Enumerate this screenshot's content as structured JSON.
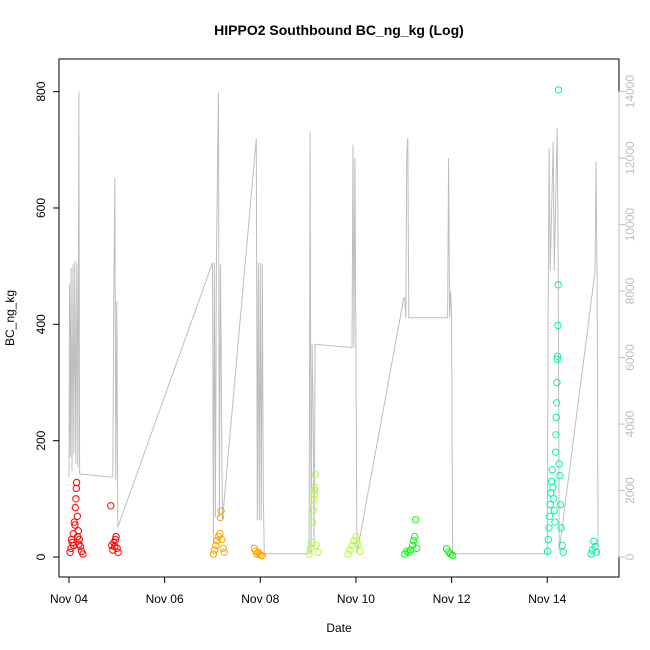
{
  "chart_data": {
    "type": "scatter",
    "title": "HIPPO2 Southbound BC_ng_kg (Log)",
    "xlabel": "Date",
    "ylabel": "BC_ng_kg",
    "x_ticks": [
      "Nov 04",
      "Nov 06",
      "Nov 08",
      "Nov 10",
      "Nov 12",
      "Nov 14"
    ],
    "x_tick_values": [
      "2009-11-04",
      "2009-11-06",
      "2009-11-08",
      "2009-11-10",
      "2009-11-12",
      "2009-11-14"
    ],
    "xlim": [
      "2009-11-03T19:00",
      "2009-11-15T12:00"
    ],
    "ylim": [
      0,
      820
    ],
    "y_ticks": [
      0,
      200,
      400,
      600,
      800
    ],
    "y2_ticks": [
      0,
      2000,
      4000,
      6000,
      8000,
      10000,
      12000,
      14000
    ],
    "y2lim": [
      0,
      14350
    ],
    "grid": false,
    "series": [
      {
        "color": "#ff0000",
        "points": [
          [
            "2009-11-04T00:30",
            8
          ],
          [
            "2009-11-04T01:00",
            15
          ],
          [
            "2009-11-04T01:40",
            25
          ],
          [
            "2009-11-04T02:10",
            40
          ],
          [
            "2009-11-04T02:40",
            60
          ],
          [
            "2009-11-04T03:10",
            85
          ],
          [
            "2009-11-04T03:30",
            100
          ],
          [
            "2009-11-04T03:40",
            118
          ],
          [
            "2009-11-04T03:50",
            128
          ],
          [
            "2009-11-04T04:10",
            70
          ],
          [
            "2009-11-04T04:40",
            45
          ],
          [
            "2009-11-04T05:10",
            30
          ],
          [
            "2009-11-04T05:40",
            18
          ],
          [
            "2009-11-04T06:20",
            10
          ],
          [
            "2009-11-04T07:00",
            5
          ],
          [
            "2009-11-04T01:20",
            30
          ],
          [
            "2009-11-04T02:20",
            20
          ],
          [
            "2009-11-04T03:00",
            55
          ],
          [
            "2009-11-04T04:20",
            35
          ],
          [
            "2009-11-04T05:00",
            22
          ],
          [
            "2009-11-04T21:00",
            88
          ],
          [
            "2009-11-04T21:30",
            20
          ],
          [
            "2009-11-04T22:00",
            12
          ],
          [
            "2009-11-04T22:30",
            25
          ],
          [
            "2009-11-04T23:00",
            18
          ],
          [
            "2009-11-04T23:20",
            30
          ],
          [
            "2009-11-04T23:40",
            35
          ],
          [
            "2009-11-05T00:10",
            15
          ],
          [
            "2009-11-05T00:40",
            8
          ]
        ]
      },
      {
        "color": "#ffa500",
        "points": [
          [
            "2009-11-07T00:30",
            5
          ],
          [
            "2009-11-07T01:00",
            12
          ],
          [
            "2009-11-07T01:40",
            20
          ],
          [
            "2009-11-07T02:20",
            28
          ],
          [
            "2009-11-07T03:00",
            35
          ],
          [
            "2009-11-07T03:40",
            40
          ],
          [
            "2009-11-07T04:00",
            68
          ],
          [
            "2009-11-07T04:20",
            79
          ],
          [
            "2009-11-07T04:40",
            30
          ],
          [
            "2009-11-07T05:20",
            15
          ],
          [
            "2009-11-07T06:00",
            8
          ],
          [
            "2009-11-07T21:00",
            15
          ],
          [
            "2009-11-07T21:40",
            10
          ],
          [
            "2009-11-07T22:20",
            5
          ],
          [
            "2009-11-07T23:00",
            8
          ],
          [
            "2009-11-07T23:40",
            5
          ],
          [
            "2009-11-08T00:20",
            3
          ],
          [
            "2009-11-08T01:00",
            2
          ]
        ]
      },
      {
        "color": "#adff2f",
        "points": [
          [
            "2009-11-09T00:30",
            5
          ],
          [
            "2009-11-09T01:10",
            15
          ],
          [
            "2009-11-09T01:40",
            25
          ],
          [
            "2009-11-09T02:10",
            60
          ],
          [
            "2009-11-09T02:30",
            80
          ],
          [
            "2009-11-09T02:50",
            98
          ],
          [
            "2009-11-09T03:00",
            108
          ],
          [
            "2009-11-09T03:10",
            115
          ],
          [
            "2009-11-09T03:20",
            120
          ],
          [
            "2009-11-09T03:40",
            142
          ],
          [
            "2009-11-09T04:00",
            20
          ],
          [
            "2009-11-09T05:00",
            8
          ],
          [
            "2009-11-09T20:00",
            5
          ],
          [
            "2009-11-09T21:00",
            12
          ],
          [
            "2009-11-09T22:00",
            20
          ],
          [
            "2009-11-09T23:00",
            28
          ],
          [
            "2009-11-10T00:00",
            35
          ],
          [
            "2009-11-10T01:00",
            22
          ],
          [
            "2009-11-10T02:00",
            10
          ]
        ]
      },
      {
        "color": "#00ff00",
        "points": [
          [
            "2009-11-11T00:30",
            5
          ],
          [
            "2009-11-11T01:30",
            10
          ],
          [
            "2009-11-11T02:30",
            8
          ],
          [
            "2009-11-11T03:30",
            12
          ],
          [
            "2009-11-11T04:30",
            20
          ],
          [
            "2009-11-11T05:00",
            28
          ],
          [
            "2009-11-11T05:30",
            35
          ],
          [
            "2009-11-11T06:00",
            64
          ],
          [
            "2009-11-11T06:30",
            15
          ],
          [
            "2009-11-11T21:30",
            14
          ],
          [
            "2009-11-11T22:30",
            8
          ],
          [
            "2009-11-11T23:30",
            5
          ],
          [
            "2009-11-12T00:30",
            3
          ]
        ]
      },
      {
        "color": "#00fa9a",
        "points": [
          [
            "2009-11-14T00:10",
            10
          ],
          [
            "2009-11-14T00:30",
            30
          ],
          [
            "2009-11-14T00:50",
            50
          ],
          [
            "2009-11-14T01:10",
            70
          ],
          [
            "2009-11-14T01:30",
            90
          ],
          [
            "2009-11-14T01:50",
            110
          ],
          [
            "2009-11-14T02:10",
            130
          ],
          [
            "2009-11-14T02:30",
            150
          ],
          [
            "2009-11-14T02:50",
            120
          ],
          [
            "2009-11-14T03:10",
            100
          ],
          [
            "2009-11-14T03:30",
            80
          ],
          [
            "2009-11-14T03:50",
            60
          ],
          [
            "2009-11-14T04:10",
            180
          ],
          [
            "2009-11-14T04:20",
            210
          ],
          [
            "2009-11-14T04:30",
            240
          ],
          [
            "2009-11-14T04:40",
            265
          ],
          [
            "2009-11-14T04:50",
            300
          ],
          [
            "2009-11-14T05:00",
            340
          ],
          [
            "2009-11-14T05:10",
            345
          ],
          [
            "2009-11-14T05:20",
            398
          ],
          [
            "2009-11-14T05:30",
            468
          ],
          [
            "2009-11-14T05:40",
            803
          ],
          [
            "2009-11-14T06:00",
            160
          ],
          [
            "2009-11-14T06:20",
            140
          ],
          [
            "2009-11-14T06:40",
            90
          ],
          [
            "2009-11-14T07:00",
            50
          ],
          [
            "2009-11-14T07:30",
            20
          ],
          [
            "2009-11-14T08:00",
            8
          ],
          [
            "2009-11-14T22:00",
            5
          ],
          [
            "2009-11-14T22:40",
            12
          ],
          [
            "2009-11-14T23:20",
            27
          ],
          [
            "2009-11-15T00:00",
            18
          ],
          [
            "2009-11-15T00:40",
            8
          ]
        ]
      }
    ],
    "secondary_line": {
      "color": "#bebebe",
      "axis": "right",
      "points": [
        [
          "2009-11-04T00:00",
          2400
        ],
        [
          "2009-11-04T00:20",
          8200
        ],
        [
          "2009-11-04T00:40",
          3000
        ],
        [
          "2009-11-04T01:00",
          8700
        ],
        [
          "2009-11-04T01:30",
          2600
        ],
        [
          "2009-11-04T02:00",
          8800
        ],
        [
          "2009-11-04T02:30",
          3100
        ],
        [
          "2009-11-04T03:00",
          8900
        ],
        [
          "2009-11-04T03:30",
          2800
        ],
        [
          "2009-11-04T04:00",
          8850
        ],
        [
          "2009-11-04T04:30",
          2700
        ],
        [
          "2009-11-04T05:00",
          14000
        ],
        [
          "2009-11-04T05:20",
          2500
        ],
        [
          "2009-11-04T22:00",
          2400
        ],
        [
          "2009-11-04T22:30",
          7800
        ],
        [
          "2009-11-04T23:00",
          11400
        ],
        [
          "2009-11-04T23:30",
          2300
        ],
        [
          "2009-11-05T00:00",
          7700
        ],
        [
          "2009-11-05T00:30",
          900
        ],
        [
          "2009-11-07T00:00",
          8850
        ],
        [
          "2009-11-07T00:30",
          400
        ],
        [
          "2009-11-07T01:00",
          8850
        ],
        [
          "2009-11-07T01:30",
          1200
        ],
        [
          "2009-11-07T02:00",
          8800
        ],
        [
          "2009-11-07T03:00",
          14000
        ],
        [
          "2009-11-07T03:30",
          1200
        ],
        [
          "2009-11-07T04:00",
          8800
        ],
        [
          "2009-11-07T05:00",
          1100
        ],
        [
          "2009-11-07T22:00",
          12600
        ],
        [
          "2009-11-07T22:30",
          1100
        ],
        [
          "2009-11-07T23:00",
          8850
        ],
        [
          "2009-11-07T23:30",
          1100
        ],
        [
          "2009-11-08T00:00",
          8850
        ],
        [
          "2009-11-08T00:30",
          1100
        ],
        [
          "2009-11-08T01:00",
          8800
        ],
        [
          "2009-11-08T01:30",
          1900
        ],
        [
          "2009-11-08T02:00",
          100
        ],
        [
          "2009-11-09T00:30",
          100
        ],
        [
          "2009-11-09T01:00",
          12800
        ],
        [
          "2009-11-09T01:30",
          100
        ],
        [
          "2009-11-09T02:00",
          6400
        ],
        [
          "2009-11-09T02:30",
          4500
        ],
        [
          "2009-11-09T03:00",
          300
        ],
        [
          "2009-11-09T03:30",
          6400
        ],
        [
          "2009-11-09T22:00",
          6300
        ],
        [
          "2009-11-09T22:30",
          12400
        ],
        [
          "2009-11-09T23:00",
          6300
        ],
        [
          "2009-11-09T23:30",
          12000
        ],
        [
          "2009-11-10T00:00",
          6300
        ],
        [
          "2009-11-10T00:30",
          100
        ],
        [
          "2009-11-11T00:00",
          7800
        ],
        [
          "2009-11-11T00:30",
          7800
        ],
        [
          "2009-11-11T01:00",
          7200
        ],
        [
          "2009-11-11T01:30",
          12200
        ],
        [
          "2009-11-11T02:00",
          12600
        ],
        [
          "2009-11-11T02:30",
          7200
        ],
        [
          "2009-11-11T06:00",
          7200
        ],
        [
          "2009-11-11T22:00",
          7200
        ],
        [
          "2009-11-11T22:30",
          12000
        ],
        [
          "2009-11-11T23:00",
          7200
        ],
        [
          "2009-11-11T23:30",
          8000
        ],
        [
          "2009-11-12T00:00",
          7200
        ],
        [
          "2009-11-12T00:30",
          100
        ],
        [
          "2009-11-14T00:00",
          100
        ],
        [
          "2009-11-14T00:30",
          8600
        ],
        [
          "2009-11-14T01:00",
          12300
        ],
        [
          "2009-11-14T01:30",
          8600
        ],
        [
          "2009-11-14T03:00",
          12500
        ],
        [
          "2009-11-14T03:30",
          8600
        ],
        [
          "2009-11-14T05:00",
          12900
        ],
        [
          "2009-11-14T05:30",
          8600
        ],
        [
          "2009-11-14T06:00",
          200
        ],
        [
          "2009-11-15T00:00",
          8600
        ],
        [
          "2009-11-15T00:30",
          11900
        ],
        [
          "2009-11-15T01:00",
          8400
        ],
        [
          "2009-11-15T01:30",
          100
        ]
      ]
    }
  }
}
